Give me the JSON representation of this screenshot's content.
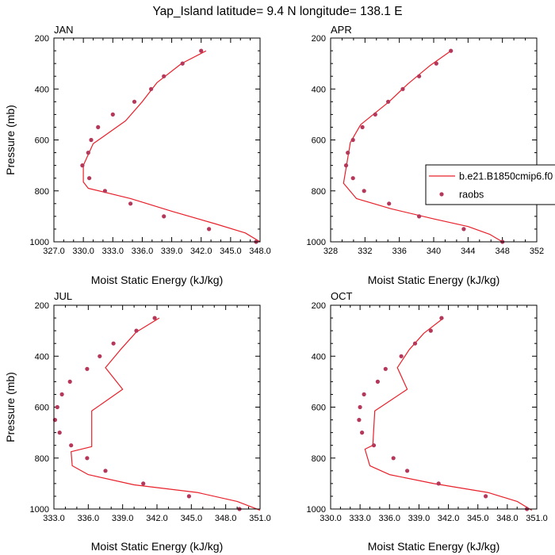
{
  "figure_title": "Yap_Island  latitude= 9.4 N longitude= 138.1 E",
  "legend": {
    "model_label": "b.e21.B1850cmip6.f0",
    "obs_label": "raobs",
    "model_color": "#e8202a",
    "obs_color": "#b5375a"
  },
  "chart_data": [
    {
      "type": "line",
      "title": "JAN",
      "xlabel": "Moist Static Energy (kJ/kg)",
      "ylabel": "Pressure (mb)",
      "xlim": [
        327,
        348
      ],
      "ylim": [
        200,
        1000
      ],
      "y_inverted": true,
      "xticks": [
        327,
        330,
        333,
        336,
        339,
        342,
        345,
        348
      ],
      "xtick_labels": [
        "327.0",
        "330.0",
        "333.0",
        "336.0",
        "339.0",
        "342.0",
        "345.0",
        "348.0"
      ],
      "yticks": [
        200,
        400,
        600,
        800,
        1000
      ],
      "ytick_labels": [
        "200",
        "400",
        "600",
        "800",
        "1000"
      ],
      "series": [
        {
          "name": "b.e21.B1850cmip6.f0",
          "kind": "line",
          "x": [
            342.5,
            340.0,
            337.5,
            336.0,
            334.3,
            331.0,
            330.0,
            330.0,
            330.5,
            334.8,
            339.0,
            343.5,
            346.5,
            348.0
          ],
          "y": [
            250,
            300,
            375,
            450,
            525,
            615,
            700,
            765,
            790,
            830,
            880,
            930,
            965,
            1000
          ]
        },
        {
          "name": "raobs",
          "kind": "scatter",
          "x": [
            342.0,
            340.1,
            338.2,
            336.9,
            335.2,
            333.0,
            331.5,
            330.8,
            330.5,
            329.9,
            330.6,
            332.2,
            334.8,
            338.2,
            342.8,
            347.6
          ],
          "y": [
            250,
            300,
            350,
            400,
            450,
            500,
            550,
            600,
            650,
            700,
            750,
            800,
            850,
            900,
            950,
            1000
          ]
        }
      ]
    },
    {
      "type": "line",
      "title": "APR",
      "xlabel": "Moist Static Energy (kJ/kg)",
      "ylabel": "",
      "xlim": [
        328,
        352
      ],
      "ylim": [
        200,
        1000
      ],
      "y_inverted": true,
      "xticks": [
        328,
        332,
        336,
        340,
        344,
        348,
        352
      ],
      "xtick_labels": [
        "328",
        "332",
        "336",
        "340",
        "344",
        "348",
        "352"
      ],
      "yticks": [
        200,
        400,
        600,
        800,
        1000
      ],
      "ytick_labels": [
        "200",
        "400",
        "600",
        "800",
        "1000"
      ],
      "series": [
        {
          "name": "b.e21.B1850cmip6.f0",
          "kind": "line",
          "x": [
            342.0,
            339.5,
            337.0,
            334.8,
            331.5,
            330.3,
            329.5,
            331.0,
            335.0,
            340.0,
            344.0,
            346.5,
            348.0
          ],
          "y": [
            250,
            310,
            380,
            450,
            540,
            610,
            770,
            830,
            870,
            910,
            940,
            970,
            1000
          ]
        },
        {
          "name": "raobs",
          "kind": "scatter",
          "x": [
            342.0,
            340.3,
            338.3,
            336.4,
            334.7,
            333.2,
            331.7,
            330.6,
            330.0,
            329.8,
            330.6,
            331.9,
            334.8,
            338.3,
            343.5,
            348.0
          ],
          "y": [
            250,
            300,
            350,
            400,
            450,
            500,
            550,
            600,
            650,
            700,
            750,
            800,
            850,
            900,
            950,
            1000
          ]
        }
      ]
    },
    {
      "type": "line",
      "title": "JUL",
      "xlabel": "Moist Static Energy (kJ/kg)",
      "ylabel": "Pressure (mb)",
      "xlim": [
        333,
        351
      ],
      "ylim": [
        200,
        1000
      ],
      "y_inverted": true,
      "xticks": [
        333,
        336,
        339,
        342,
        345,
        348,
        351
      ],
      "xtick_labels": [
        "333.0",
        "336.0",
        "339.0",
        "342.0",
        "345.0",
        "348.0",
        "351.0"
      ],
      "yticks": [
        200,
        400,
        600,
        800,
        1000
      ],
      "ytick_labels": [
        "200",
        "400",
        "600",
        "800",
        "1000"
      ],
      "series": [
        {
          "name": "b.e21.B1850cmip6.f0",
          "kind": "line",
          "x": [
            342.2,
            340.2,
            338.8,
            337.5,
            339.0,
            336.3,
            336.3,
            334.5,
            334.6,
            336.0,
            340.0,
            345.5,
            349.0,
            351.0
          ],
          "y": [
            250,
            305,
            375,
            445,
            530,
            615,
            755,
            775,
            830,
            865,
            905,
            935,
            970,
            1005
          ]
        },
        {
          "name": "raobs",
          "kind": "scatter",
          "x": [
            341.8,
            340.2,
            338.2,
            337.0,
            335.9,
            334.4,
            333.7,
            333.3,
            333.1,
            333.5,
            334.5,
            335.9,
            337.5,
            340.8,
            344.8,
            349.2
          ],
          "y": [
            250,
            300,
            350,
            400,
            450,
            500,
            550,
            600,
            650,
            700,
            750,
            800,
            850,
            900,
            950,
            1000
          ]
        }
      ]
    },
    {
      "type": "line",
      "title": "OCT",
      "xlabel": "Moist Static Energy (kJ/kg)",
      "ylabel": "",
      "xlim": [
        330,
        351
      ],
      "ylim": [
        200,
        1000
      ],
      "y_inverted": true,
      "xticks": [
        330,
        333,
        336,
        339,
        342,
        345,
        348,
        351
      ],
      "xtick_labels": [
        "330.0",
        "333.0",
        "336.0",
        "339.0",
        "342.0",
        "345.0",
        "348.0",
        "351.0"
      ],
      "yticks": [
        200,
        400,
        600,
        800,
        1000
      ],
      "ytick_labels": [
        "200",
        "400",
        "600",
        "800",
        "1000"
      ],
      "series": [
        {
          "name": "b.e21.B1850cmip6.f0",
          "kind": "line",
          "x": [
            341.5,
            339.5,
            338.0,
            336.8,
            337.8,
            334.5,
            334.3,
            333.5,
            334.0,
            336.0,
            340.5,
            346.0,
            349.0,
            350.5
          ],
          "y": [
            250,
            310,
            375,
            445,
            530,
            615,
            750,
            765,
            830,
            865,
            900,
            935,
            970,
            1005
          ]
        },
        {
          "name": "raobs",
          "kind": "scatter",
          "x": [
            341.3,
            340.2,
            338.6,
            337.2,
            335.6,
            334.8,
            333.4,
            333.0,
            332.9,
            333.2,
            334.4,
            336.4,
            337.8,
            341.0,
            345.8,
            350.0
          ],
          "y": [
            250,
            300,
            350,
            400,
            450,
            500,
            550,
            600,
            650,
            700,
            750,
            800,
            850,
            900,
            950,
            1000
          ]
        }
      ]
    }
  ]
}
